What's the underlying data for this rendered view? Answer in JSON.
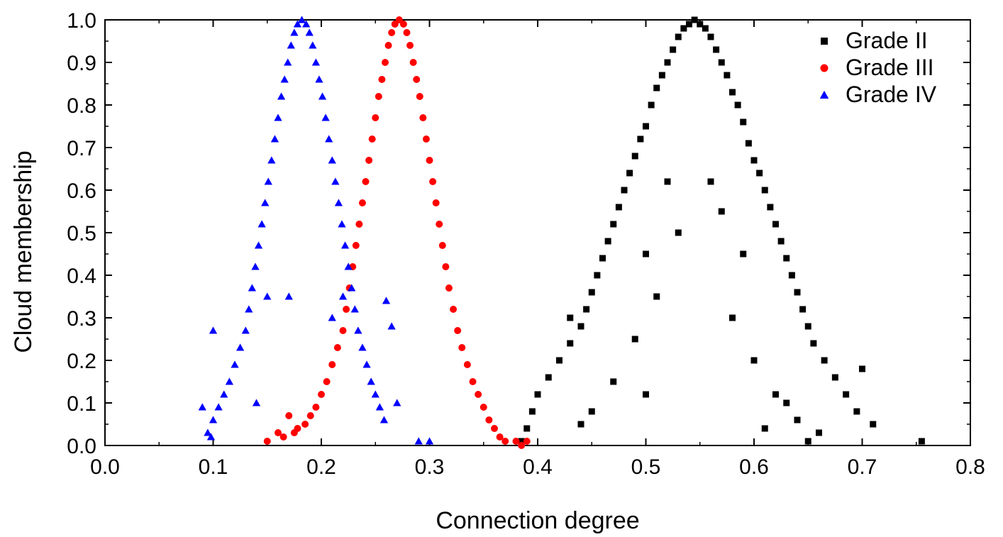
{
  "chart_data": {
    "type": "scatter",
    "title": "",
    "xlabel": "Connection degree",
    "ylabel": "Cloud membership",
    "xlim": [
      0.0,
      0.8
    ],
    "ylim": [
      0.0,
      1.0
    ],
    "xticks": [
      "0.0",
      "0.1",
      "0.2",
      "0.3",
      "0.4",
      "0.5",
      "0.6",
      "0.7",
      "0.8"
    ],
    "yticks": [
      "0.0",
      "0.1",
      "0.2",
      "0.3",
      "0.4",
      "0.5",
      "0.6",
      "0.7",
      "0.8",
      "0.9",
      "1.0"
    ],
    "grid": false,
    "legend_position": "top-right",
    "series": [
      {
        "name": "Grade II",
        "marker": "square",
        "color": "#000000",
        "points": [
          [
            0.545,
            1.0
          ],
          [
            0.54,
            0.99
          ],
          [
            0.55,
            0.99
          ],
          [
            0.535,
            0.98
          ],
          [
            0.555,
            0.98
          ],
          [
            0.53,
            0.96
          ],
          [
            0.56,
            0.96
          ],
          [
            0.525,
            0.93
          ],
          [
            0.565,
            0.93
          ],
          [
            0.52,
            0.9
          ],
          [
            0.57,
            0.9
          ],
          [
            0.515,
            0.87
          ],
          [
            0.575,
            0.87
          ],
          [
            0.51,
            0.84
          ],
          [
            0.58,
            0.83
          ],
          [
            0.505,
            0.8
          ],
          [
            0.585,
            0.8
          ],
          [
            0.5,
            0.75
          ],
          [
            0.59,
            0.76
          ],
          [
            0.495,
            0.72
          ],
          [
            0.595,
            0.71
          ],
          [
            0.49,
            0.68
          ],
          [
            0.6,
            0.67
          ],
          [
            0.485,
            0.64
          ],
          [
            0.605,
            0.64
          ],
          [
            0.48,
            0.6
          ],
          [
            0.61,
            0.6
          ],
          [
            0.475,
            0.56
          ],
          [
            0.615,
            0.56
          ],
          [
            0.47,
            0.52
          ],
          [
            0.62,
            0.52
          ],
          [
            0.465,
            0.48
          ],
          [
            0.625,
            0.48
          ],
          [
            0.46,
            0.44
          ],
          [
            0.63,
            0.44
          ],
          [
            0.455,
            0.4
          ],
          [
            0.635,
            0.4
          ],
          [
            0.45,
            0.36
          ],
          [
            0.64,
            0.36
          ],
          [
            0.445,
            0.32
          ],
          [
            0.645,
            0.32
          ],
          [
            0.44,
            0.28
          ],
          [
            0.65,
            0.28
          ],
          [
            0.43,
            0.24
          ],
          [
            0.655,
            0.24
          ],
          [
            0.42,
            0.2
          ],
          [
            0.665,
            0.2
          ],
          [
            0.41,
            0.16
          ],
          [
            0.675,
            0.16
          ],
          [
            0.4,
            0.12
          ],
          [
            0.685,
            0.12
          ],
          [
            0.395,
            0.08
          ],
          [
            0.695,
            0.08
          ],
          [
            0.39,
            0.04
          ],
          [
            0.71,
            0.05
          ],
          [
            0.385,
            0.01
          ],
          [
            0.755,
            0.01
          ],
          [
            0.7,
            0.18
          ],
          [
            0.65,
            0.01
          ],
          [
            0.66,
            0.03
          ],
          [
            0.61,
            0.04
          ],
          [
            0.52,
            0.62
          ],
          [
            0.56,
            0.62
          ],
          [
            0.53,
            0.5
          ],
          [
            0.57,
            0.55
          ],
          [
            0.5,
            0.45
          ],
          [
            0.59,
            0.45
          ],
          [
            0.51,
            0.35
          ],
          [
            0.58,
            0.3
          ],
          [
            0.49,
            0.25
          ],
          [
            0.6,
            0.2
          ],
          [
            0.47,
            0.15
          ],
          [
            0.62,
            0.12
          ],
          [
            0.5,
            0.12
          ],
          [
            0.45,
            0.08
          ],
          [
            0.63,
            0.1
          ],
          [
            0.44,
            0.05
          ],
          [
            0.64,
            0.06
          ],
          [
            0.43,
            0.3
          ]
        ]
      },
      {
        "name": "Grade III",
        "marker": "circle",
        "color": "#ff0000",
        "points": [
          [
            0.272,
            1.0
          ],
          [
            0.268,
            0.99
          ],
          [
            0.276,
            0.99
          ],
          [
            0.265,
            0.97
          ],
          [
            0.279,
            0.97
          ],
          [
            0.262,
            0.94
          ],
          [
            0.282,
            0.94
          ],
          [
            0.259,
            0.9
          ],
          [
            0.285,
            0.9
          ],
          [
            0.256,
            0.86
          ],
          [
            0.288,
            0.86
          ],
          [
            0.253,
            0.82
          ],
          [
            0.291,
            0.82
          ],
          [
            0.25,
            0.77
          ],
          [
            0.294,
            0.77
          ],
          [
            0.247,
            0.72
          ],
          [
            0.297,
            0.72
          ],
          [
            0.244,
            0.67
          ],
          [
            0.3,
            0.67
          ],
          [
            0.241,
            0.62
          ],
          [
            0.303,
            0.62
          ],
          [
            0.238,
            0.57
          ],
          [
            0.306,
            0.57
          ],
          [
            0.235,
            0.52
          ],
          [
            0.309,
            0.52
          ],
          [
            0.232,
            0.47
          ],
          [
            0.312,
            0.47
          ],
          [
            0.229,
            0.42
          ],
          [
            0.315,
            0.42
          ],
          [
            0.226,
            0.37
          ],
          [
            0.318,
            0.37
          ],
          [
            0.223,
            0.32
          ],
          [
            0.322,
            0.32
          ],
          [
            0.22,
            0.27
          ],
          [
            0.326,
            0.27
          ],
          [
            0.215,
            0.23
          ],
          [
            0.33,
            0.23
          ],
          [
            0.21,
            0.19
          ],
          [
            0.335,
            0.19
          ],
          [
            0.205,
            0.15
          ],
          [
            0.34,
            0.15
          ],
          [
            0.2,
            0.12
          ],
          [
            0.345,
            0.12
          ],
          [
            0.195,
            0.09
          ],
          [
            0.35,
            0.09
          ],
          [
            0.19,
            0.07
          ],
          [
            0.355,
            0.06
          ],
          [
            0.185,
            0.05
          ],
          [
            0.36,
            0.04
          ],
          [
            0.178,
            0.04
          ],
          [
            0.365,
            0.02
          ],
          [
            0.17,
            0.07
          ],
          [
            0.37,
            0.01
          ],
          [
            0.165,
            0.02
          ],
          [
            0.38,
            0.01
          ],
          [
            0.16,
            0.03
          ],
          [
            0.15,
            0.01
          ],
          [
            0.39,
            0.01
          ],
          [
            0.385,
            0.0
          ],
          [
            0.175,
            0.03
          ]
        ]
      },
      {
        "name": "Grade IV",
        "marker": "triangle",
        "color": "#0000ff",
        "points": [
          [
            0.182,
            1.0
          ],
          [
            0.178,
            0.99
          ],
          [
            0.186,
            0.99
          ],
          [
            0.175,
            0.97
          ],
          [
            0.189,
            0.97
          ],
          [
            0.172,
            0.94
          ],
          [
            0.192,
            0.94
          ],
          [
            0.169,
            0.9
          ],
          [
            0.195,
            0.9
          ],
          [
            0.166,
            0.86
          ],
          [
            0.198,
            0.86
          ],
          [
            0.163,
            0.82
          ],
          [
            0.201,
            0.82
          ],
          [
            0.16,
            0.77
          ],
          [
            0.204,
            0.77
          ],
          [
            0.157,
            0.72
          ],
          [
            0.207,
            0.72
          ],
          [
            0.154,
            0.67
          ],
          [
            0.21,
            0.67
          ],
          [
            0.151,
            0.62
          ],
          [
            0.213,
            0.62
          ],
          [
            0.148,
            0.57
          ],
          [
            0.216,
            0.57
          ],
          [
            0.145,
            0.52
          ],
          [
            0.219,
            0.52
          ],
          [
            0.142,
            0.47
          ],
          [
            0.222,
            0.47
          ],
          [
            0.139,
            0.42
          ],
          [
            0.225,
            0.42
          ],
          [
            0.136,
            0.37
          ],
          [
            0.228,
            0.37
          ],
          [
            0.133,
            0.32
          ],
          [
            0.231,
            0.32
          ],
          [
            0.13,
            0.27
          ],
          [
            0.234,
            0.27
          ],
          [
            0.125,
            0.23
          ],
          [
            0.238,
            0.23
          ],
          [
            0.12,
            0.19
          ],
          [
            0.242,
            0.19
          ],
          [
            0.115,
            0.15
          ],
          [
            0.246,
            0.15
          ],
          [
            0.11,
            0.12
          ],
          [
            0.25,
            0.12
          ],
          [
            0.105,
            0.09
          ],
          [
            0.254,
            0.09
          ],
          [
            0.1,
            0.06
          ],
          [
            0.258,
            0.06
          ],
          [
            0.095,
            0.03
          ],
          [
            0.098,
            0.02
          ],
          [
            0.09,
            0.09
          ],
          [
            0.1,
            0.27
          ],
          [
            0.26,
            0.34
          ],
          [
            0.265,
            0.28
          ],
          [
            0.27,
            0.1
          ],
          [
            0.29,
            0.01
          ],
          [
            0.3,
            0.01
          ],
          [
            0.21,
            0.3
          ],
          [
            0.22,
            0.35
          ],
          [
            0.17,
            0.35
          ],
          [
            0.15,
            0.35
          ],
          [
            0.14,
            0.1
          ]
        ]
      }
    ]
  }
}
